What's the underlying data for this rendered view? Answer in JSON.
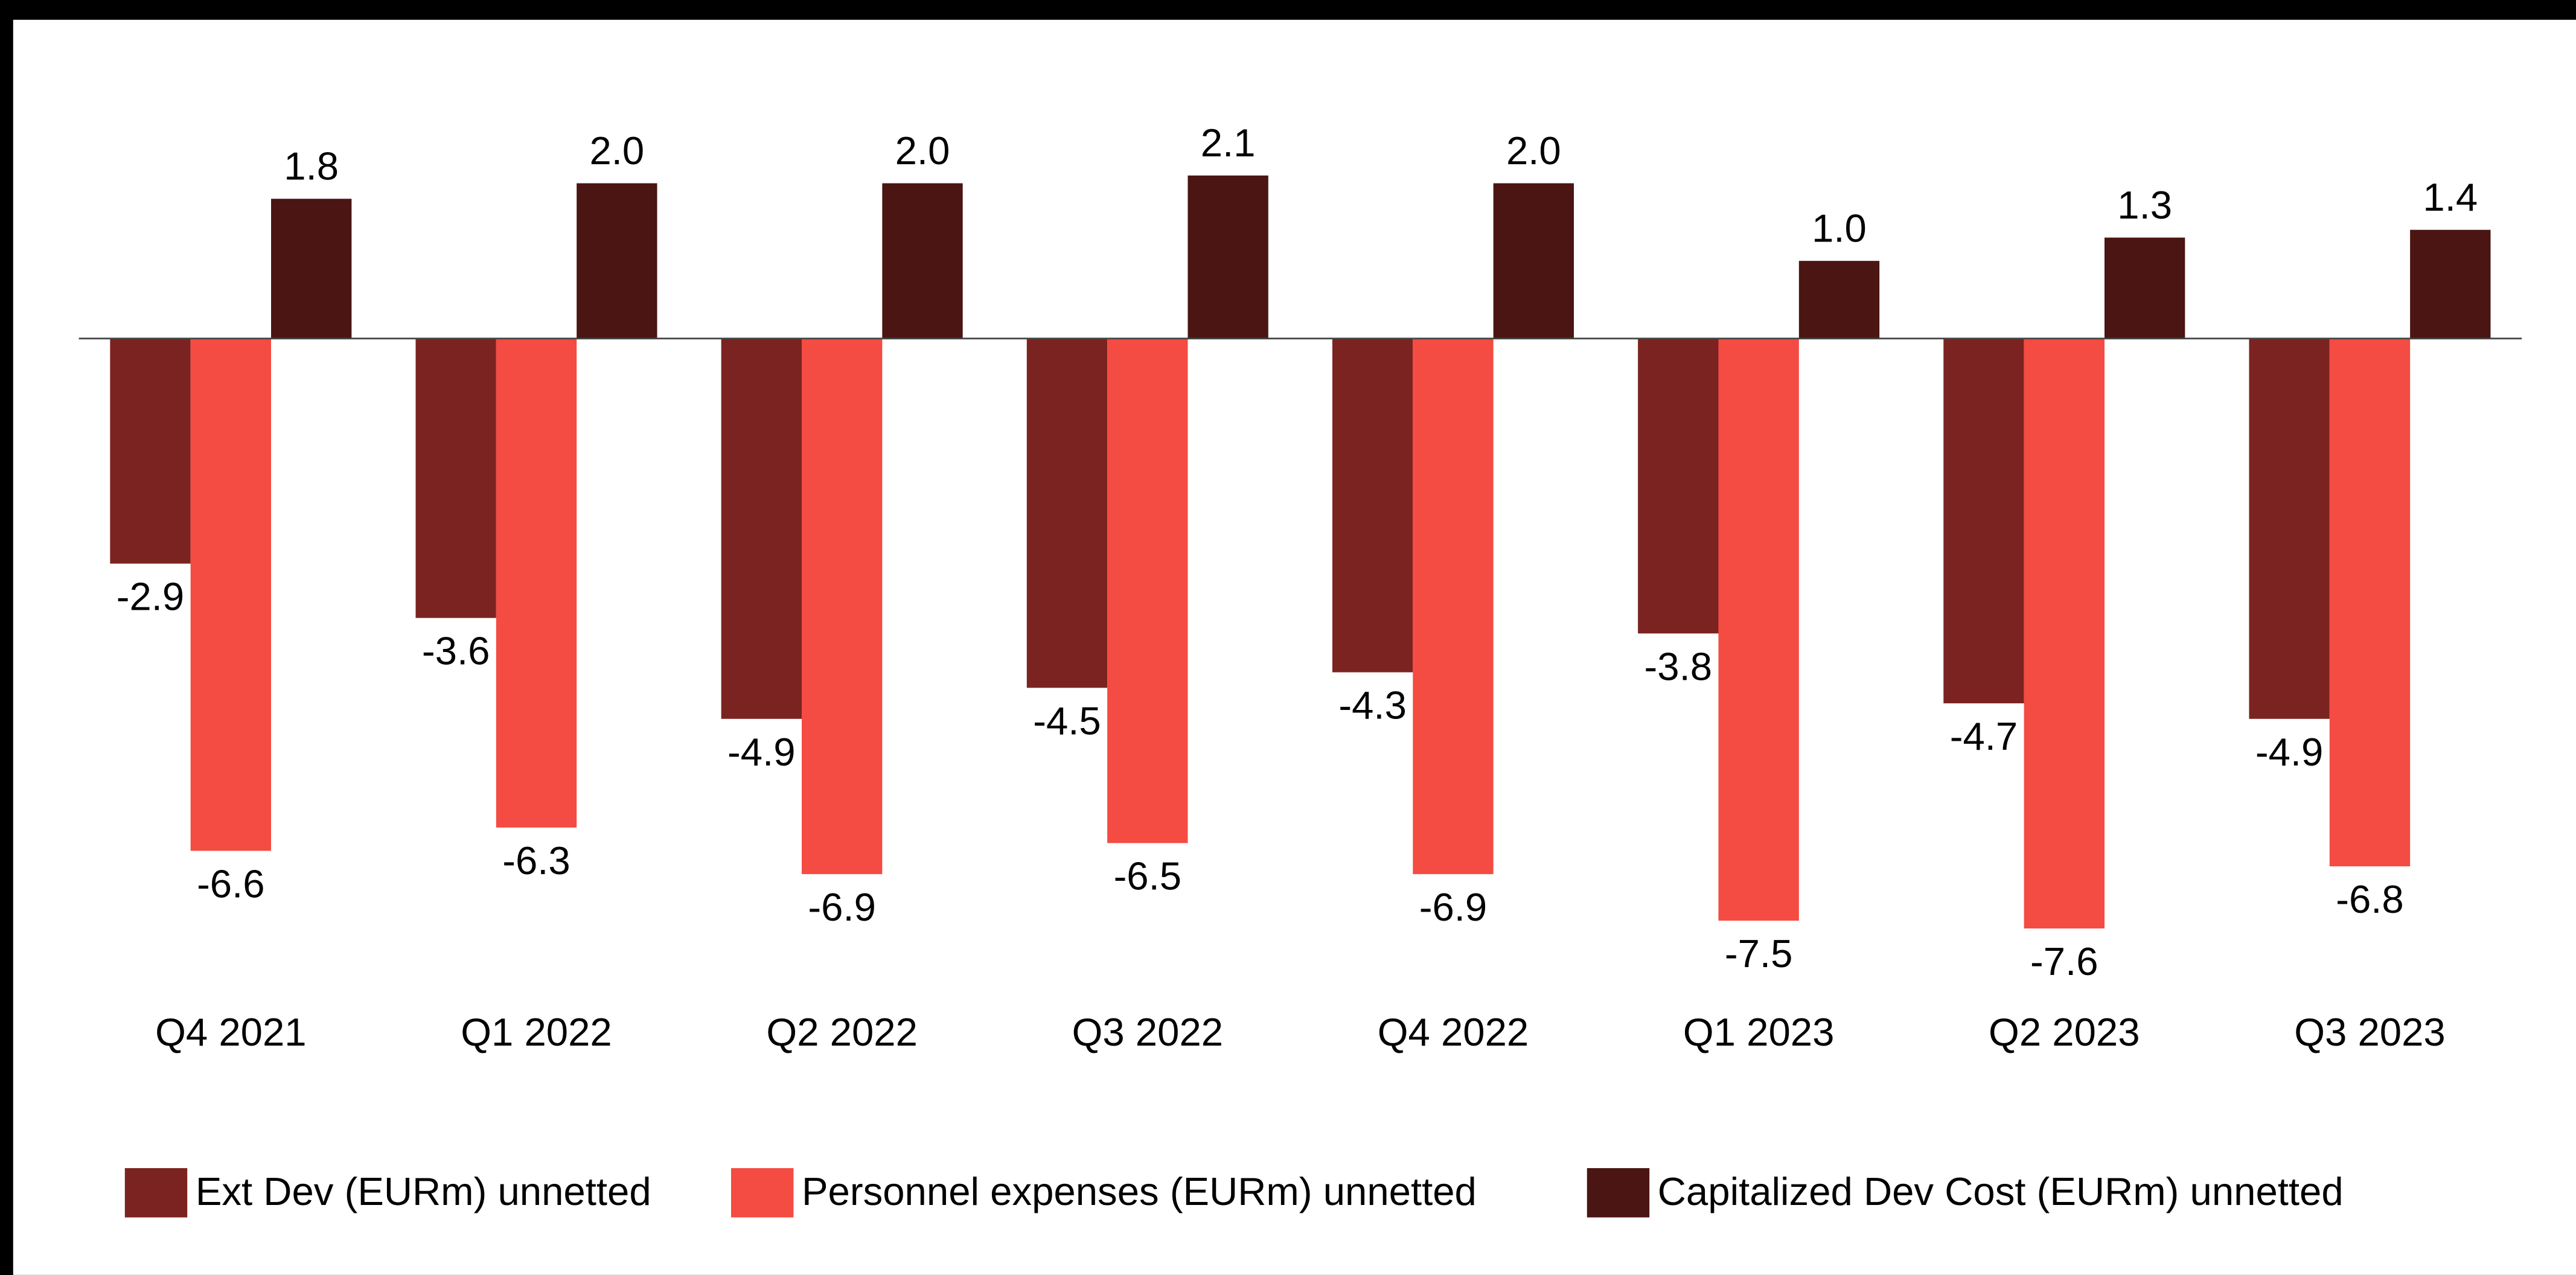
{
  "chart_data": {
    "type": "bar",
    "categories": [
      "Q4 2021",
      "Q1 2022",
      "Q2 2022",
      "Q3 2022",
      "Q4 2022",
      "Q1 2023",
      "Q2 2023",
      "Q3 2023"
    ],
    "series": [
      {
        "name": "Ext Dev (EURm) unnetted",
        "color": "#7b2320",
        "values": [
          -2.9,
          -3.6,
          -4.9,
          -4.5,
          -4.3,
          -3.8,
          -4.7,
          -4.9
        ],
        "value_labels": [
          "-2.9",
          "-3.6",
          "-4.9",
          "-4.5",
          "-4.3",
          "-3.8",
          "-4.7",
          "-4.9"
        ]
      },
      {
        "name": "Personnel expenses (EURm) unnetted",
        "color": "#f44b42",
        "values": [
          -6.6,
          -6.3,
          -6.9,
          -6.5,
          -6.9,
          -7.5,
          -7.6,
          -6.8
        ],
        "value_labels": [
          "-6.6",
          "-6.3",
          "-6.9",
          "-6.5",
          "-6.9",
          "-7.5",
          "-7.6",
          "-6.8"
        ]
      },
      {
        "name": "Capitalized Dev Cost (EURm) unnetted",
        "color": "#4a1512",
        "values": [
          1.8,
          2.0,
          2.0,
          2.1,
          2.0,
          1.0,
          1.3,
          1.4
        ],
        "value_labels": [
          "1.8",
          "2.0",
          "2.0",
          "2.1",
          "2.0",
          "1.0",
          "1.3",
          "1.4"
        ]
      }
    ],
    "legend": "bottom"
  }
}
